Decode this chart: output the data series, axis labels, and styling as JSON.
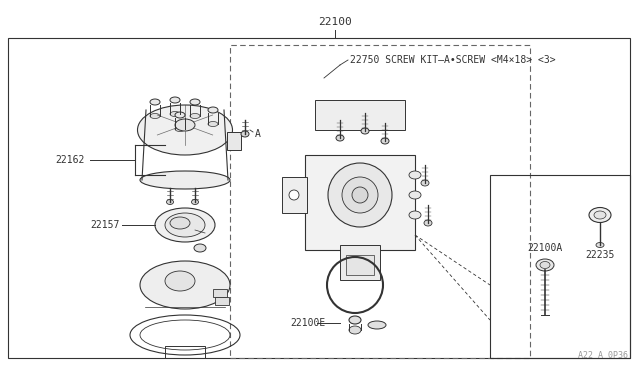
{
  "bg_color": "#ffffff",
  "line_color": "#333333",
  "dashed_color": "#666666",
  "label_22100": "22100",
  "label_22162": "22162",
  "label_22157": "22157",
  "label_22100E": "22100E",
  "label_22750": "22750 SCREW KIT—A•SCREW <M4×18> <3>",
  "label_A": "A",
  "label_22100A": "22100A",
  "label_22235": "22235",
  "watermark": "A22 A 0P36",
  "fs": 7.0,
  "fs_title": 8.0
}
